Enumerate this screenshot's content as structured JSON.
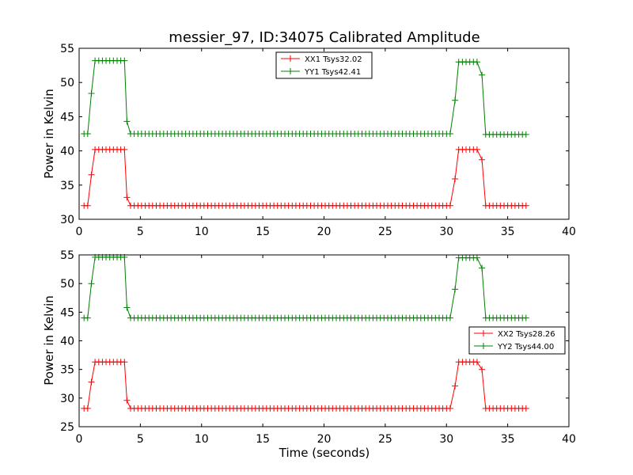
{
  "figure": {
    "title": "messier_97, ID:34075 Calibrated Amplitude",
    "xlabel": "Time (seconds)"
  },
  "chart_data": [
    {
      "type": "line",
      "title": "messier_97, ID:34075 Calibrated Amplitude",
      "xlabel": "",
      "ylabel": "Power in Kelvin",
      "xlim": [
        0,
        40
      ],
      "ylim": [
        30,
        55
      ],
      "xticks": [
        0,
        5,
        10,
        15,
        20,
        25,
        30,
        35,
        40
      ],
      "yticks": [
        30,
        35,
        40,
        45,
        50,
        55
      ],
      "grid": false,
      "legend_position": "top-center",
      "series": [
        {
          "name": "XX1 Tsys32.02",
          "color": "#ff0000",
          "segments": [
            {
              "x0": 0.4,
              "x1": 0.7,
              "value": 32.0
            },
            {
              "x0": 1.0,
              "x1": 1.0,
              "value": 36.5
            },
            {
              "x0": 1.3,
              "x1": 3.7,
              "value": 40.2
            },
            {
              "x0": 3.9,
              "x1": 3.9,
              "value": 33.2
            },
            {
              "x0": 4.2,
              "x1": 30.4,
              "value": 32.0
            },
            {
              "x0": 30.7,
              "x1": 30.7,
              "value": 35.9
            },
            {
              "x0": 31.0,
              "x1": 32.6,
              "value": 40.2
            },
            {
              "x0": 32.9,
              "x1": 32.9,
              "value": 38.7
            },
            {
              "x0": 33.2,
              "x1": 36.4,
              "value": 32.0
            }
          ]
        },
        {
          "name": "YY1 Tsys42.41",
          "color": "#008000",
          "segments": [
            {
              "x0": 0.4,
              "x1": 0.7,
              "value": 42.5
            },
            {
              "x0": 1.0,
              "x1": 1.0,
              "value": 48.4
            },
            {
              "x0": 1.3,
              "x1": 3.7,
              "value": 53.2
            },
            {
              "x0": 3.9,
              "x1": 3.9,
              "value": 44.3
            },
            {
              "x0": 4.2,
              "x1": 30.4,
              "value": 42.5
            },
            {
              "x0": 30.7,
              "x1": 30.7,
              "value": 47.4
            },
            {
              "x0": 31.0,
              "x1": 32.6,
              "value": 53.0
            },
            {
              "x0": 32.9,
              "x1": 32.9,
              "value": 51.1
            },
            {
              "x0": 33.2,
              "x1": 36.4,
              "value": 42.4
            }
          ]
        }
      ]
    },
    {
      "type": "line",
      "title": "",
      "xlabel": "Time (seconds)",
      "ylabel": "Power in Kelvin",
      "xlim": [
        0,
        40
      ],
      "ylim": [
        25,
        55
      ],
      "xticks": [
        0,
        5,
        10,
        15,
        20,
        25,
        30,
        35,
        40
      ],
      "yticks": [
        25,
        30,
        35,
        40,
        45,
        50,
        55
      ],
      "grid": false,
      "legend_position": "right",
      "series": [
        {
          "name": "XX2 Tsys28.26",
          "color": "#ff0000",
          "segments": [
            {
              "x0": 0.4,
              "x1": 0.7,
              "value": 28.2
            },
            {
              "x0": 1.0,
              "x1": 1.0,
              "value": 32.8
            },
            {
              "x0": 1.3,
              "x1": 3.7,
              "value": 36.3
            },
            {
              "x0": 3.9,
              "x1": 3.9,
              "value": 29.6
            },
            {
              "x0": 4.2,
              "x1": 30.4,
              "value": 28.2
            },
            {
              "x0": 30.7,
              "x1": 30.7,
              "value": 32.1
            },
            {
              "x0": 31.0,
              "x1": 32.6,
              "value": 36.3
            },
            {
              "x0": 32.9,
              "x1": 32.9,
              "value": 35.0
            },
            {
              "x0": 33.2,
              "x1": 36.4,
              "value": 28.2
            }
          ]
        },
        {
          "name": "YY2 Tsys44.00",
          "color": "#008000",
          "segments": [
            {
              "x0": 0.4,
              "x1": 0.7,
              "value": 44.0
            },
            {
              "x0": 1.0,
              "x1": 1.0,
              "value": 50.0
            },
            {
              "x0": 1.3,
              "x1": 3.7,
              "value": 54.6
            },
            {
              "x0": 3.9,
              "x1": 3.9,
              "value": 45.8
            },
            {
              "x0": 4.2,
              "x1": 30.4,
              "value": 44.0
            },
            {
              "x0": 30.7,
              "x1": 30.7,
              "value": 49.0
            },
            {
              "x0": 31.0,
              "x1": 32.6,
              "value": 54.5
            },
            {
              "x0": 32.9,
              "x1": 32.9,
              "value": 52.7
            },
            {
              "x0": 33.2,
              "x1": 36.4,
              "value": 44.0
            }
          ]
        }
      ]
    }
  ]
}
